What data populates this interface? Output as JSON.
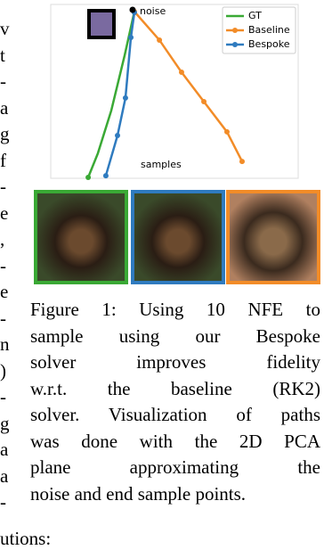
{
  "chart_data": {
    "type": "line",
    "series": [
      {
        "name": "GT",
        "color": "#3aa935",
        "markers": "end",
        "x": [
          43.1,
          38.1,
          31.2,
          24.3,
          19.3
        ],
        "values": [
          95.9,
          70.8,
          39.0,
          14.4,
          0.5
        ]
      },
      {
        "name": "Baseline",
        "color": "#f28c28",
        "markers": "all",
        "x": [
          43.1,
          56.0,
          67.4,
          78.9,
          90.8,
          98.6
        ],
        "values": [
          95.9,
          79.5,
          61.0,
          44.1,
          26.7,
          9.7
        ]
      },
      {
        "name": "Bespoke",
        "color": "#2f7bbf",
        "markers": "all",
        "x": [
          43.1,
          41.3,
          38.5,
          34.4,
          28.4
        ],
        "values": [
          95.4,
          81.0,
          46.2,
          24.6,
          1.5
        ]
      }
    ],
    "annotations": [
      "noise",
      "samples"
    ],
    "xlim": [
      0,
      127.5
    ],
    "ylim": [
      0,
      100
    ],
    "legend": "top-right"
  },
  "caption": {
    "lines": [
      "Figure 1:  Using 10 NFE to",
      "sample using our Bespoke",
      "solver improves fidelity",
      "w.r.t. the baseline (RK2)",
      "solver. Visualization of paths",
      "was done with the 2D PCA",
      "plane approximating the",
      "noise and end sample points."
    ]
  },
  "margin_fragments": [
    "v",
    "t",
    "-",
    "a",
    "g",
    "f",
    "-",
    "e",
    ",",
    "-",
    "e",
    "-",
    "n",
    ")",
    "-",
    "g",
    "a",
    "a",
    "-"
  ],
  "bottom_text": "utions:"
}
